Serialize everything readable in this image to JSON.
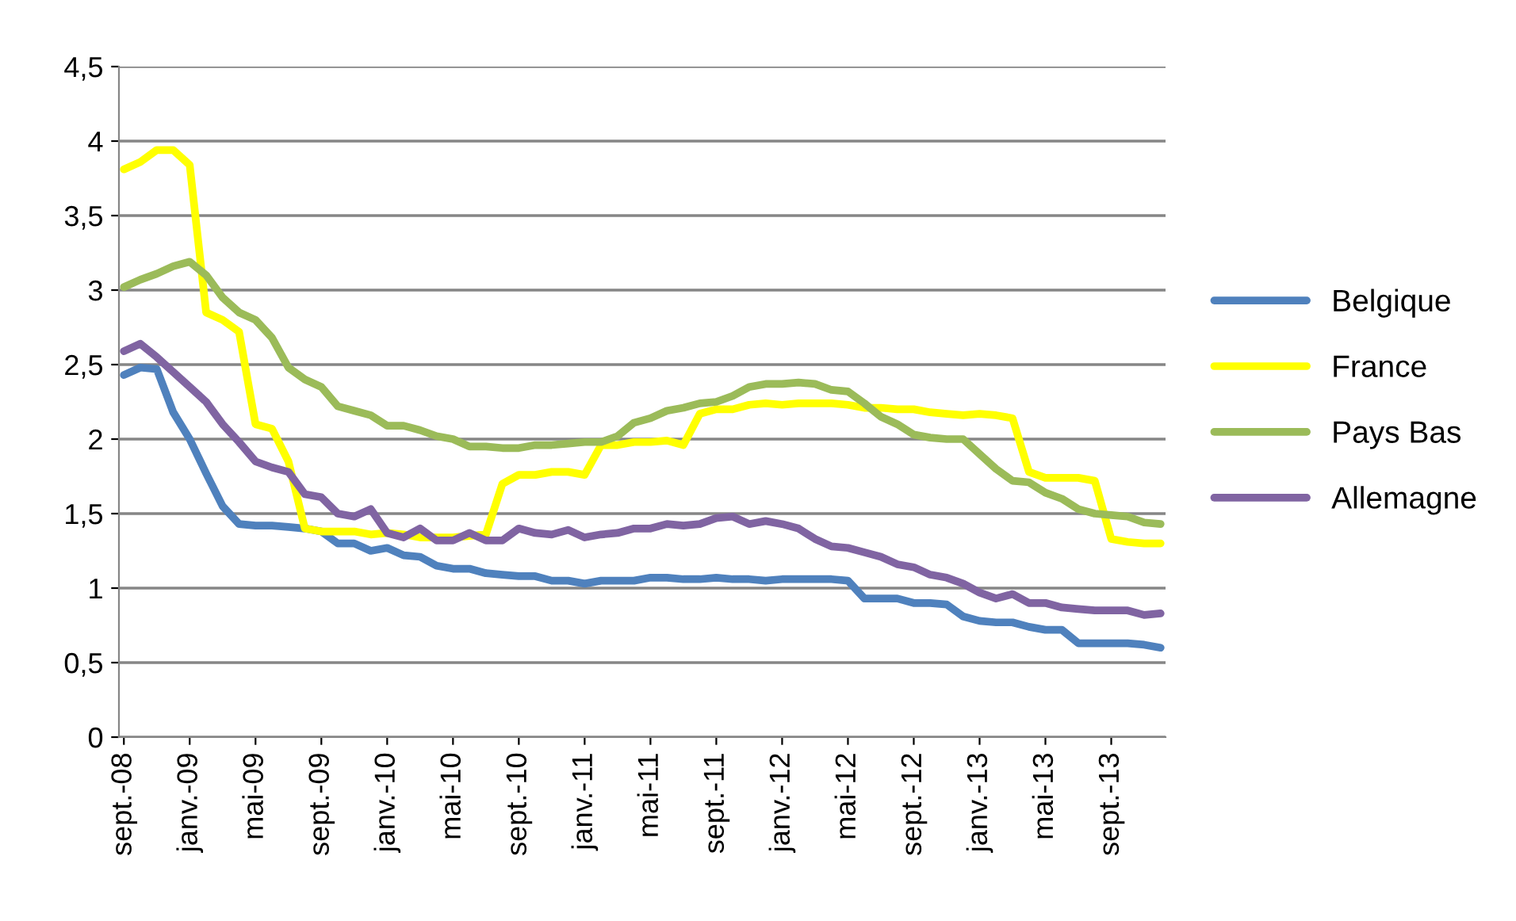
{
  "chart_data": {
    "type": "line",
    "categories": [
      "sept.-08",
      null,
      null,
      null,
      "janv.-09",
      null,
      null,
      null,
      "mai-09",
      null,
      null,
      null,
      "sept.-09",
      null,
      null,
      null,
      "janv.-10",
      null,
      null,
      null,
      "mai-10",
      null,
      null,
      null,
      "sept.-10",
      null,
      null,
      null,
      "janv.-11",
      null,
      null,
      null,
      "mai-11",
      null,
      null,
      null,
      "sept.-11",
      null,
      null,
      null,
      "janv.-12",
      null,
      null,
      null,
      "mai-12",
      null,
      null,
      null,
      "sept.-12",
      null,
      null,
      null,
      "janv.-13",
      null,
      null,
      null,
      "mai-13",
      null,
      null,
      null,
      "sept.-13",
      null,
      null,
      null
    ],
    "series": [
      {
        "name": "Belgique",
        "color": "#4f81bd",
        "values": [
          2.43,
          2.48,
          2.47,
          2.18,
          2.0,
          1.77,
          1.55,
          1.43,
          1.42,
          1.42,
          1.41,
          1.4,
          1.38,
          1.3,
          1.3,
          1.25,
          1.27,
          1.22,
          1.21,
          1.15,
          1.13,
          1.13,
          1.1,
          1.09,
          1.08,
          1.08,
          1.05,
          1.05,
          1.03,
          1.05,
          1.05,
          1.05,
          1.07,
          1.07,
          1.06,
          1.06,
          1.07,
          1.06,
          1.06,
          1.05,
          1.06,
          1.06,
          1.06,
          1.06,
          1.05,
          0.93,
          0.93,
          0.93,
          0.9,
          0.9,
          0.89,
          0.81,
          0.78,
          0.77,
          0.77,
          0.74,
          0.72,
          0.72,
          0.63,
          0.63,
          0.63,
          0.63,
          0.62,
          0.6
        ]
      },
      {
        "name": "France",
        "color": "#ffff00",
        "values": [
          3.81,
          3.86,
          3.94,
          3.94,
          3.84,
          2.85,
          2.8,
          2.72,
          2.1,
          2.07,
          1.85,
          1.4,
          1.38,
          1.38,
          1.38,
          1.36,
          1.37,
          1.36,
          1.34,
          1.34,
          1.34,
          1.35,
          1.36,
          1.7,
          1.76,
          1.76,
          1.78,
          1.78,
          1.76,
          1.96,
          1.96,
          1.98,
          1.98,
          1.99,
          1.96,
          2.17,
          2.2,
          2.2,
          2.23,
          2.24,
          2.23,
          2.24,
          2.24,
          2.24,
          2.23,
          2.21,
          2.21,
          2.2,
          2.2,
          2.18,
          2.17,
          2.16,
          2.17,
          2.16,
          2.14,
          1.78,
          1.74,
          1.74,
          1.74,
          1.72,
          1.33,
          1.31,
          1.3,
          1.3
        ]
      },
      {
        "name": "Pays Bas",
        "color": "#9bbb59",
        "values": [
          3.02,
          3.07,
          3.11,
          3.16,
          3.19,
          3.1,
          2.95,
          2.85,
          2.8,
          2.68,
          2.48,
          2.4,
          2.35,
          2.22,
          2.19,
          2.16,
          2.09,
          2.09,
          2.06,
          2.02,
          2.0,
          1.95,
          1.95,
          1.94,
          1.94,
          1.96,
          1.96,
          1.97,
          1.98,
          1.98,
          2.02,
          2.11,
          2.14,
          2.19,
          2.21,
          2.24,
          2.25,
          2.29,
          2.35,
          2.37,
          2.37,
          2.38,
          2.37,
          2.33,
          2.32,
          2.24,
          2.15,
          2.1,
          2.03,
          2.01,
          2.0,
          2.0,
          1.9,
          1.8,
          1.72,
          1.71,
          1.64,
          1.6,
          1.53,
          1.5,
          1.49,
          1.48,
          1.44,
          1.43
        ]
      },
      {
        "name": "Allemagne",
        "color": "#8064a2",
        "values": [
          2.59,
          2.64,
          2.55,
          2.45,
          2.35,
          2.25,
          2.1,
          1.98,
          1.85,
          1.81,
          1.78,
          1.63,
          1.61,
          1.5,
          1.48,
          1.53,
          1.37,
          1.34,
          1.4,
          1.32,
          1.32,
          1.37,
          1.32,
          1.32,
          1.4,
          1.37,
          1.36,
          1.39,
          1.34,
          1.36,
          1.37,
          1.4,
          1.4,
          1.43,
          1.42,
          1.43,
          1.47,
          1.48,
          1.43,
          1.45,
          1.43,
          1.4,
          1.33,
          1.28,
          1.27,
          1.24,
          1.21,
          1.16,
          1.14,
          1.09,
          1.07,
          1.03,
          0.97,
          0.93,
          0.96,
          0.9,
          0.9,
          0.87,
          0.86,
          0.85,
          0.85,
          0.85,
          0.82,
          0.83
        ]
      }
    ],
    "ylim": [
      0,
      4.5
    ],
    "yticks": [
      {
        "value": 0,
        "label": "0"
      },
      {
        "value": 0.5,
        "label": "0,5"
      },
      {
        "value": 1,
        "label": "1"
      },
      {
        "value": 1.5,
        "label": "1,5"
      },
      {
        "value": 2,
        "label": "2"
      },
      {
        "value": 2.5,
        "label": "2,5"
      },
      {
        "value": 3,
        "label": "3"
      },
      {
        "value": 3.5,
        "label": "3,5"
      },
      {
        "value": 4,
        "label": "4"
      },
      {
        "value": 4.5,
        "label": "4,5"
      }
    ],
    "grid": "y",
    "legend": "right",
    "marker": "none",
    "line_style": "solid"
  }
}
